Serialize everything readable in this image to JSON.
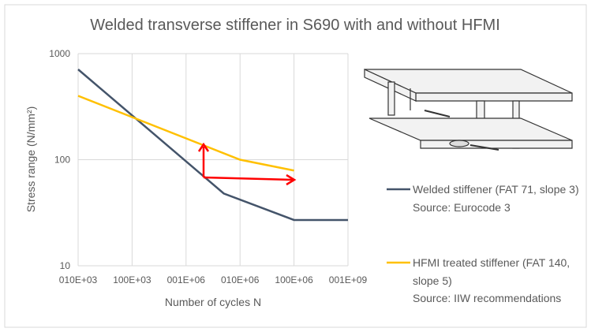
{
  "chart_data": {
    "type": "line",
    "title": "Welded transverse stiffener in S690 with and without HFMI",
    "x_label": "Number of cycles N",
    "y_label": "Stress range (N/mm²)",
    "xlog": true,
    "ylog": true,
    "grid": true,
    "xlim": [
      10000,
      1000000000
    ],
    "xticks": [
      {
        "value": 10000,
        "label": "010E+03"
      },
      {
        "value": 100000,
        "label": "100E+03"
      },
      {
        "value": 1000000,
        "label": "001E+06"
      },
      {
        "value": 10000000,
        "label": "010E+06"
      },
      {
        "value": 100000000,
        "label": "100E+06"
      },
      {
        "value": 1000000000,
        "label": "001E+09"
      }
    ],
    "ylim": [
      10,
      1000
    ],
    "yticks": [
      10,
      100,
      1000
    ],
    "series": [
      {
        "name": "Welded stiffener (FAT 71, slope 3)",
        "source": "Source: Eurocode 3",
        "color": "#44546a",
        "x": [
          10000,
          5000000,
          100000000,
          1000000000
        ],
        "values": [
          710,
          48,
          27,
          27
        ]
      },
      {
        "name": "HFMI treated stiffener (FAT 140, slope 5)",
        "source": "Source: IIW recommendations",
        "color": "#ffc000",
        "x": [
          10000,
          10000000,
          100000000
        ],
        "values": [
          400,
          100,
          79
        ]
      }
    ]
  }
}
